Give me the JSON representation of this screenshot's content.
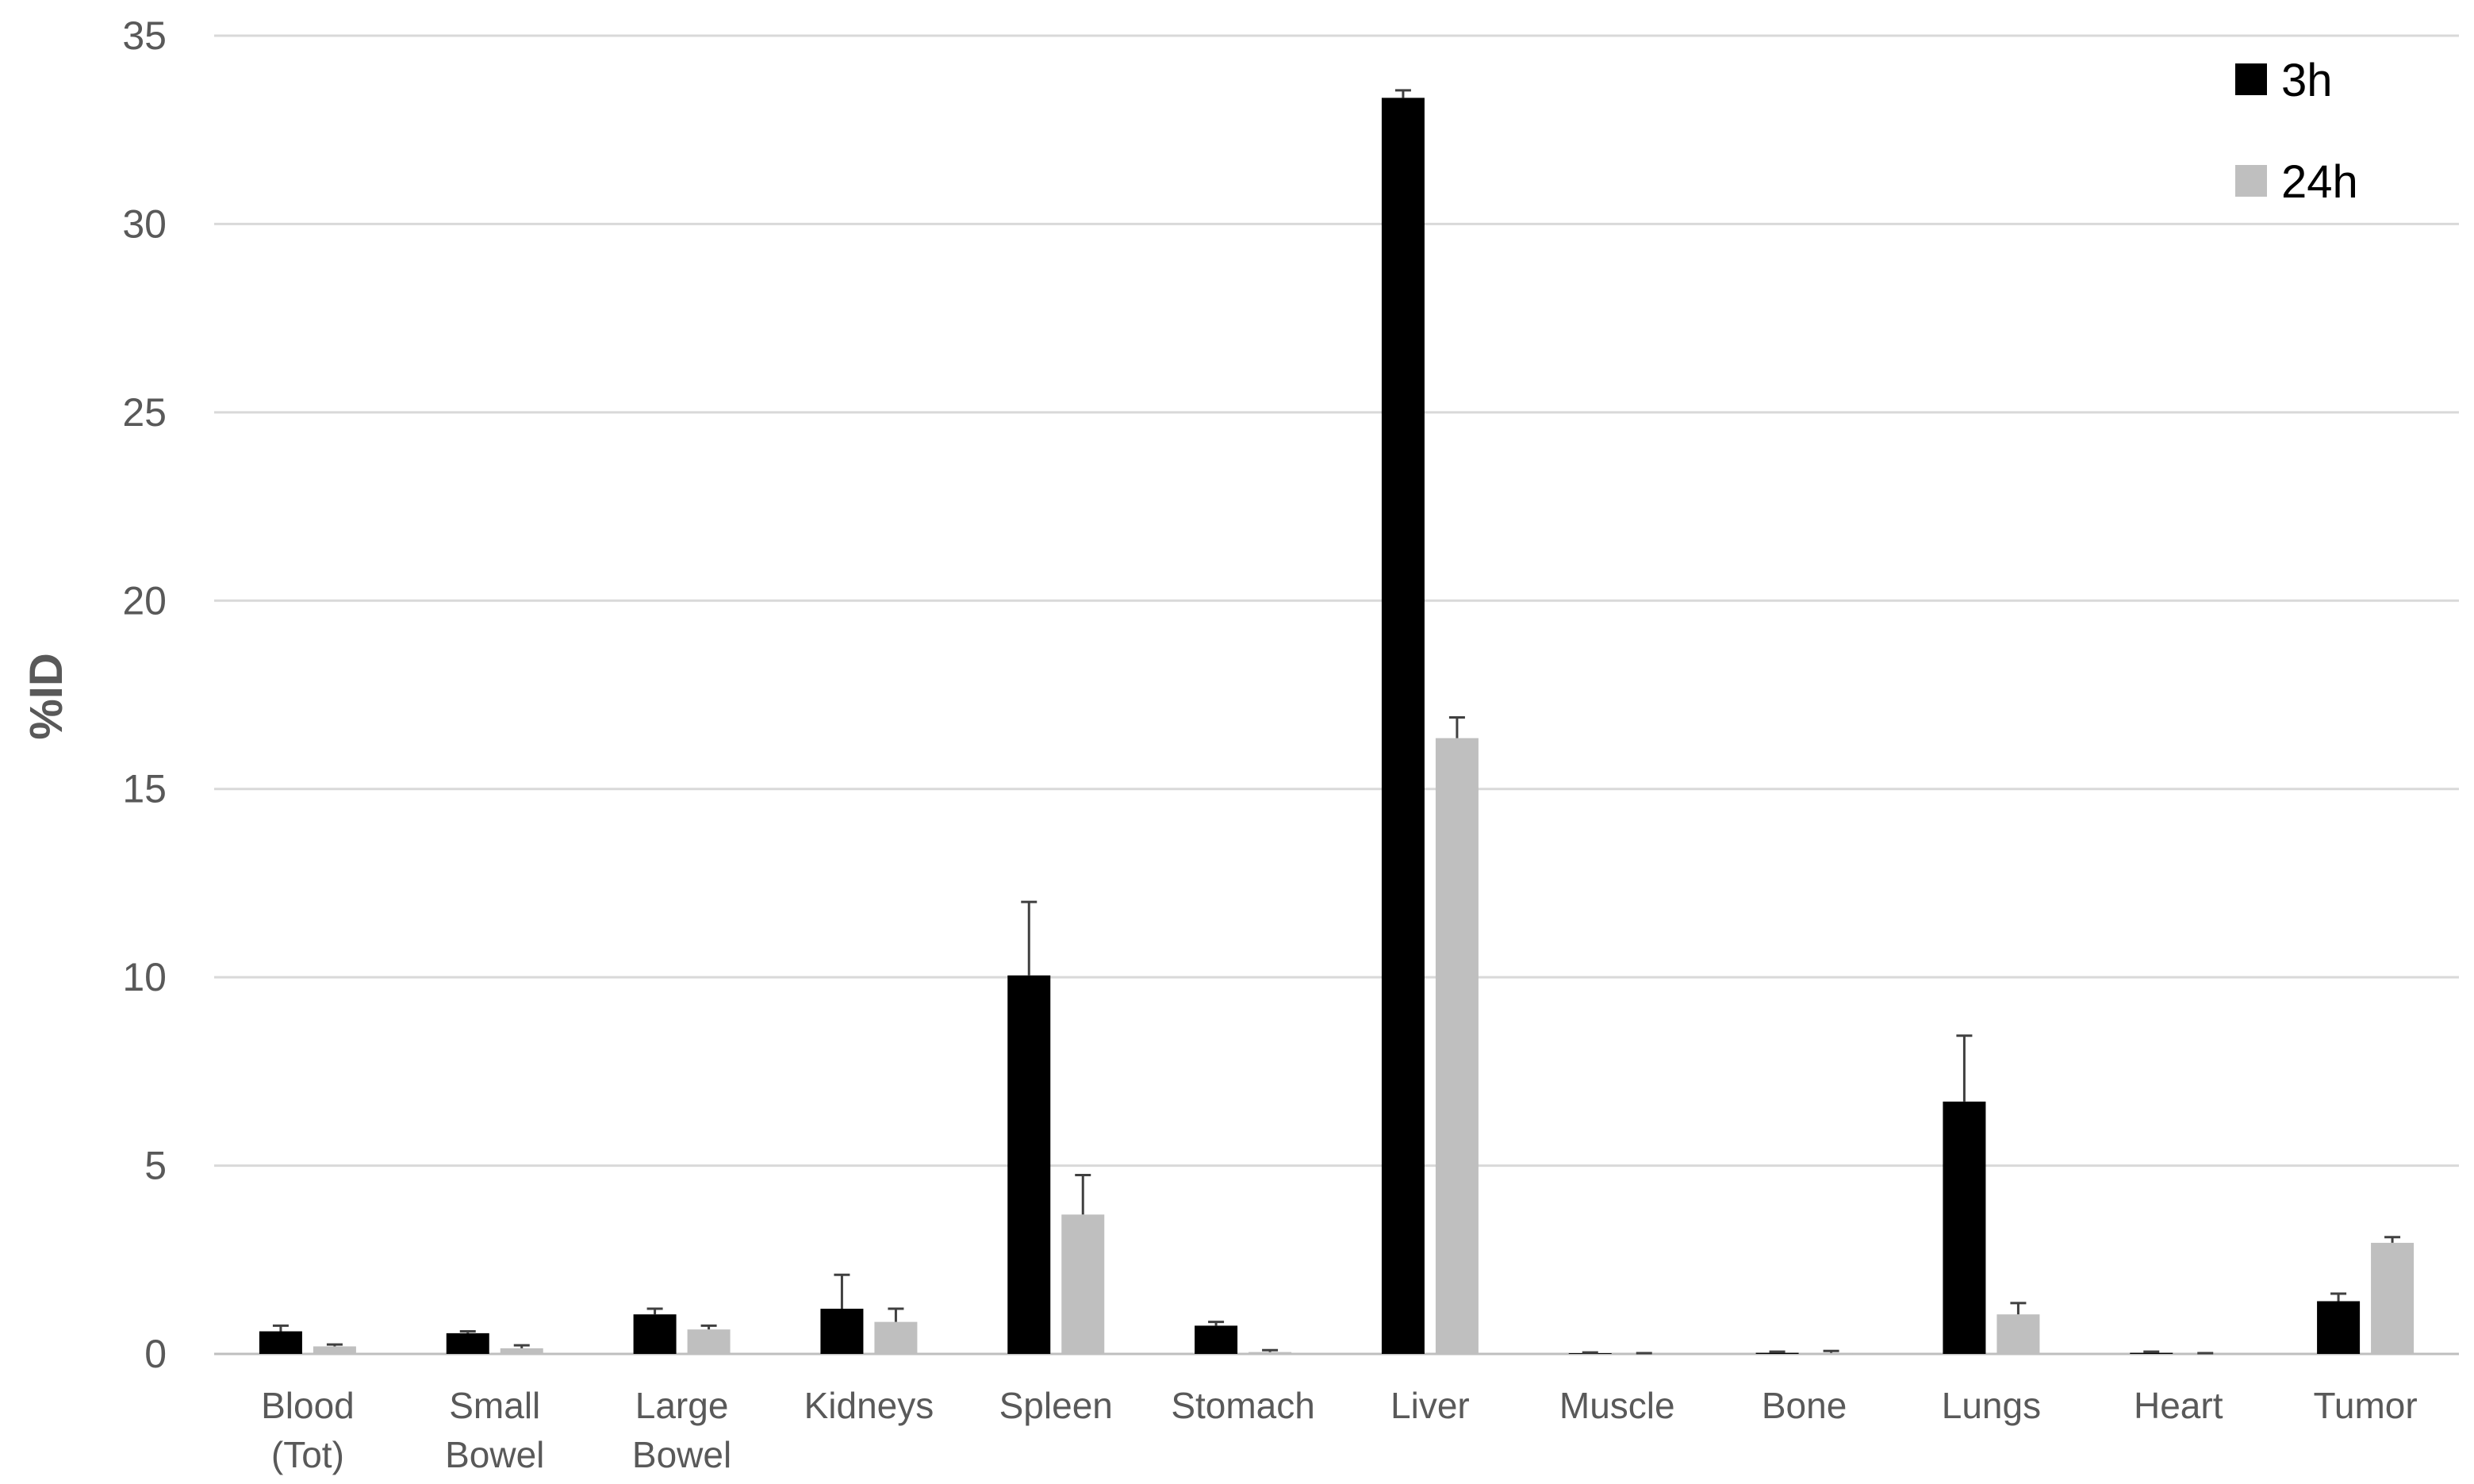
{
  "chart_data": {
    "type": "bar",
    "ylabel": "%ID",
    "xlabel": "",
    "ylim": [
      0,
      35
    ],
    "yticks": [
      0,
      5,
      10,
      15,
      20,
      25,
      30,
      35
    ],
    "grid": true,
    "legend_position": "top-right",
    "categories": [
      [
        "Blood",
        "(Tot)"
      ],
      [
        "Small",
        "Bowel"
      ],
      [
        "Large",
        "Bowel"
      ],
      [
        "Kidneys"
      ],
      [
        "Spleen"
      ],
      [
        "Stomach"
      ],
      [
        "Liver"
      ],
      [
        "Muscle"
      ],
      [
        "Bone"
      ],
      [
        "Lungs"
      ],
      [
        "Heart"
      ],
      [
        "Tumor"
      ]
    ],
    "series": [
      {
        "name": "3h",
        "color": "#000000",
        "values": [
          0.6,
          0.55,
          1.05,
          1.2,
          10.05,
          0.75,
          33.35,
          0.02,
          0.03,
          6.7,
          0.03,
          1.4
        ],
        "errors": [
          0.15,
          0.05,
          0.15,
          0.9,
          1.95,
          0.1,
          0.2,
          0.02,
          0.03,
          1.75,
          0.03,
          0.2
        ]
      },
      {
        "name": "24h",
        "color": "#bfbfbf",
        "values": [
          0.2,
          0.15,
          0.65,
          0.85,
          3.7,
          0.05,
          16.35,
          0.01,
          0.03,
          1.05,
          0.01,
          2.95
        ],
        "errors": [
          0.05,
          0.08,
          0.1,
          0.35,
          1.05,
          0.05,
          0.55,
          0.01,
          0.05,
          0.3,
          0.01,
          0.15
        ]
      }
    ]
  }
}
